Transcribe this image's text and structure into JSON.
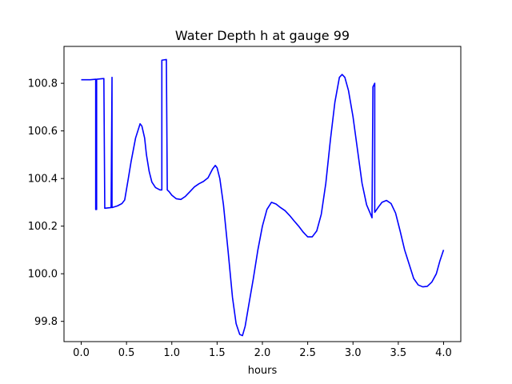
{
  "chart_data": {
    "type": "line",
    "title": "Water Depth h at gauge 99",
    "xlabel": "hours",
    "ylabel": "",
    "xlim": [
      -0.19,
      4.19
    ],
    "ylim": [
      99.715,
      100.955
    ],
    "xticks": [
      "0.0",
      "0.5",
      "1.0",
      "1.5",
      "2.0",
      "2.5",
      "3.0",
      "3.5",
      "4.0"
    ],
    "yticks": [
      "99.8",
      "100.0",
      "100.2",
      "100.4",
      "100.6",
      "100.8"
    ],
    "grid": false,
    "legend": "none",
    "series": [
      {
        "color": "#0000ff",
        "points": [
          [
            0.0,
            100.815
          ],
          [
            0.1,
            100.815
          ],
          [
            0.16,
            100.817
          ],
          [
            0.16,
            100.27
          ],
          [
            0.17,
            100.27
          ],
          [
            0.17,
            100.817
          ],
          [
            0.25,
            100.82
          ],
          [
            0.26,
            100.275
          ],
          [
            0.33,
            100.278
          ],
          [
            0.34,
            100.825
          ],
          [
            0.34,
            100.278
          ],
          [
            0.4,
            100.285
          ],
          [
            0.45,
            100.295
          ],
          [
            0.48,
            100.31
          ],
          [
            0.52,
            100.4
          ],
          [
            0.55,
            100.47
          ],
          [
            0.6,
            100.57
          ],
          [
            0.65,
            100.63
          ],
          [
            0.67,
            100.62
          ],
          [
            0.7,
            100.57
          ],
          [
            0.72,
            100.5
          ],
          [
            0.75,
            100.43
          ],
          [
            0.78,
            100.385
          ],
          [
            0.82,
            100.362
          ],
          [
            0.87,
            100.352
          ],
          [
            0.89,
            100.352
          ],
          [
            0.89,
            100.897
          ],
          [
            0.94,
            100.9
          ],
          [
            0.95,
            100.352
          ],
          [
            0.97,
            100.345
          ],
          [
            1.0,
            100.33
          ],
          [
            1.05,
            100.315
          ],
          [
            1.1,
            100.312
          ],
          [
            1.15,
            100.325
          ],
          [
            1.2,
            100.345
          ],
          [
            1.25,
            100.365
          ],
          [
            1.3,
            100.378
          ],
          [
            1.35,
            100.388
          ],
          [
            1.4,
            100.403
          ],
          [
            1.45,
            100.44
          ],
          [
            1.48,
            100.455
          ],
          [
            1.5,
            100.445
          ],
          [
            1.53,
            100.4
          ],
          [
            1.57,
            100.29
          ],
          [
            1.62,
            100.1
          ],
          [
            1.67,
            99.9
          ],
          [
            1.71,
            99.79
          ],
          [
            1.75,
            99.745
          ],
          [
            1.78,
            99.74
          ],
          [
            1.81,
            99.78
          ],
          [
            1.85,
            99.87
          ],
          [
            1.9,
            99.98
          ],
          [
            1.95,
            100.1
          ],
          [
            2.0,
            100.2
          ],
          [
            2.05,
            100.27
          ],
          [
            2.1,
            100.3
          ],
          [
            2.15,
            100.293
          ],
          [
            2.2,
            100.278
          ],
          [
            2.25,
            100.265
          ],
          [
            2.3,
            100.245
          ],
          [
            2.35,
            100.222
          ],
          [
            2.4,
            100.2
          ],
          [
            2.45,
            100.175
          ],
          [
            2.5,
            100.155
          ],
          [
            2.55,
            100.155
          ],
          [
            2.6,
            100.18
          ],
          [
            2.65,
            100.25
          ],
          [
            2.7,
            100.38
          ],
          [
            2.75,
            100.56
          ],
          [
            2.8,
            100.72
          ],
          [
            2.85,
            100.825
          ],
          [
            2.88,
            100.837
          ],
          [
            2.91,
            100.825
          ],
          [
            2.95,
            100.77
          ],
          [
            3.0,
            100.66
          ],
          [
            3.05,
            100.52
          ],
          [
            3.1,
            100.38
          ],
          [
            3.15,
            100.29
          ],
          [
            3.2,
            100.245
          ],
          [
            3.21,
            100.235
          ],
          [
            3.22,
            100.785
          ],
          [
            3.24,
            100.8
          ],
          [
            3.24,
            100.258
          ],
          [
            3.28,
            100.28
          ],
          [
            3.32,
            100.3
          ],
          [
            3.37,
            100.308
          ],
          [
            3.42,
            100.295
          ],
          [
            3.47,
            100.255
          ],
          [
            3.52,
            100.18
          ],
          [
            3.57,
            100.1
          ],
          [
            3.62,
            100.04
          ],
          [
            3.67,
            99.98
          ],
          [
            3.72,
            99.953
          ],
          [
            3.77,
            99.945
          ],
          [
            3.82,
            99.947
          ],
          [
            3.87,
            99.965
          ],
          [
            3.92,
            100.0
          ],
          [
            3.96,
            100.055
          ],
          [
            4.0,
            100.1
          ]
        ]
      }
    ]
  }
}
